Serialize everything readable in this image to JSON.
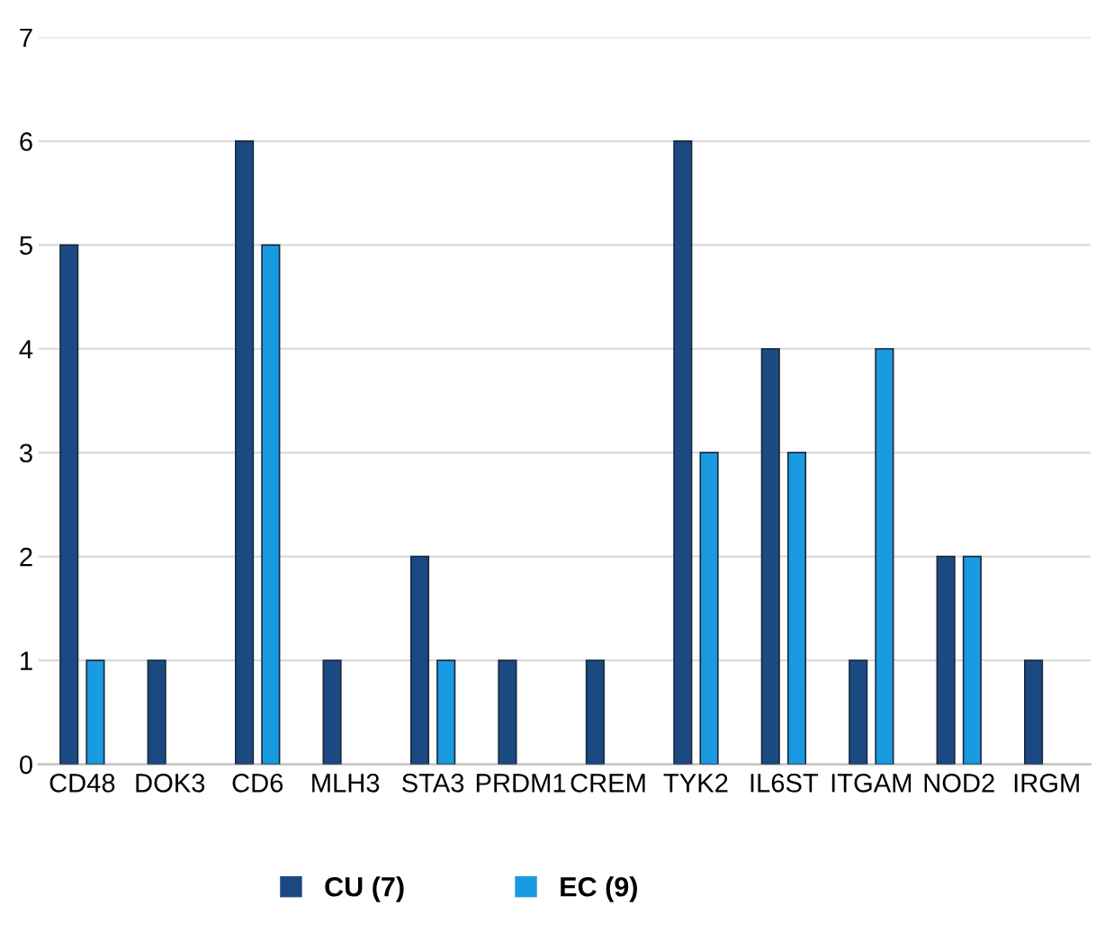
{
  "chart_data": {
    "type": "bar",
    "categories": [
      "CD48",
      "DOK3",
      "CD6",
      "MLH3",
      "STA3",
      "PRDM1",
      "CREM",
      "TYK2",
      "IL6ST",
      "ITGAM",
      "NOD2",
      "IRGM"
    ],
    "series": [
      {
        "name": "CU (7)",
        "color": "#1b4a82",
        "values": [
          5,
          1,
          6,
          1,
          2,
          1,
          1,
          6,
          4,
          1,
          2,
          1
        ]
      },
      {
        "name": "EC (9)",
        "color": "#1a9ae0",
        "values": [
          1,
          null,
          5,
          null,
          1,
          null,
          null,
          3,
          3,
          4,
          2,
          null
        ]
      }
    ],
    "ylim": [
      0,
      7
    ],
    "yticks": [
      0,
      1,
      2,
      3,
      4,
      5,
      6,
      7
    ],
    "grid": "y",
    "legend": "bottom"
  }
}
